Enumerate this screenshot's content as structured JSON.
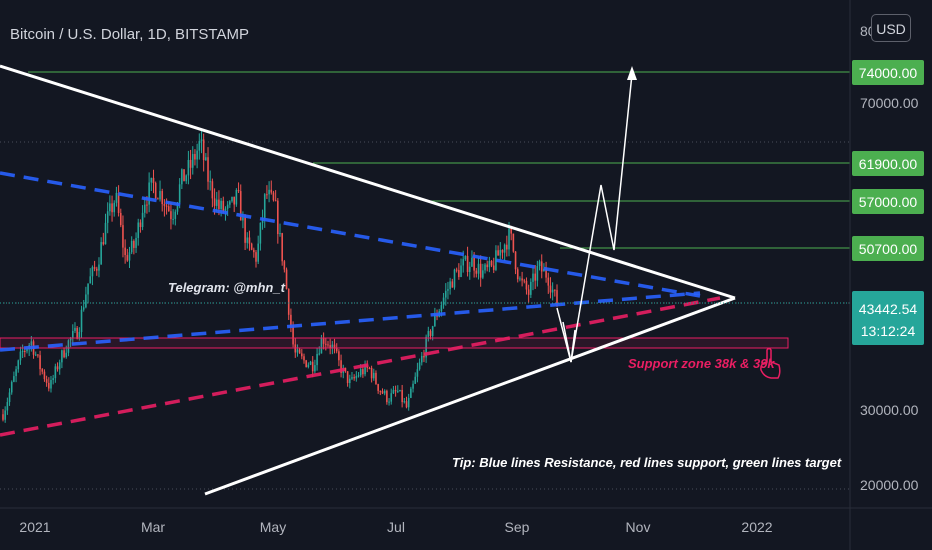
{
  "title": "Bitcoin / U.S. Dollar, 1D, BITSTAMP",
  "currency_button": "USD",
  "colors": {
    "background": "#131722",
    "candle_up": "#26a69a",
    "candle_down": "#ef5350",
    "resistance": "#2962ff",
    "support": "#e91e63",
    "target": "#4caf50",
    "triangle": "#ffffff",
    "price_tag": "#26a69a"
  },
  "annotations": {
    "telegram": "Telegram: @mhn_t",
    "support_zone": "Support zone 38k & 39k",
    "tip": "Tip: Blue lines Resistance, red lines support, green lines target"
  },
  "chart_data": {
    "type": "candlestick",
    "title": "Bitcoin / U.S. Dollar, 1D, BITSTAMP",
    "xlabel": "",
    "ylabel": "",
    "x_ticks": [
      "2021",
      "Mar",
      "May",
      "Jul",
      "Sep",
      "Nov",
      "2022"
    ],
    "y_ticks": [
      "20000.00",
      "30000.00",
      "70000.00"
    ],
    "y_axis_partial_label": "80",
    "current_price": "43442.54",
    "countdown": "13:12:24",
    "grid": true,
    "targets": [
      {
        "label": "74000.00",
        "value": 74000
      },
      {
        "label": "61900.00",
        "value": 61900
      },
      {
        "label": "57000.00",
        "value": 57000
      },
      {
        "label": "50700.00",
        "value": 50700
      }
    ],
    "support_zone": [
      38000,
      39000
    ],
    "price_series": [
      29000,
      33000,
      37000,
      38500,
      35000,
      32500,
      36000,
      38500,
      40000,
      46000,
      48500,
      54000,
      57500,
      49500,
      51000,
      57000,
      59000,
      57500,
      55000,
      59500,
      61500,
      64500,
      59000,
      56000,
      55500,
      57500,
      51000,
      49500,
      58000,
      56000,
      47500,
      37000,
      36000,
      35500,
      39000,
      38000,
      35000,
      33000,
      34500,
      35000,
      32500,
      31000,
      32000,
      29800,
      34000,
      38000,
      41500,
      44500,
      47000,
      48500,
      49000,
      47500,
      48000,
      50500,
      52500,
      46500,
      44800,
      48200,
      47200,
      43442
    ]
  }
}
